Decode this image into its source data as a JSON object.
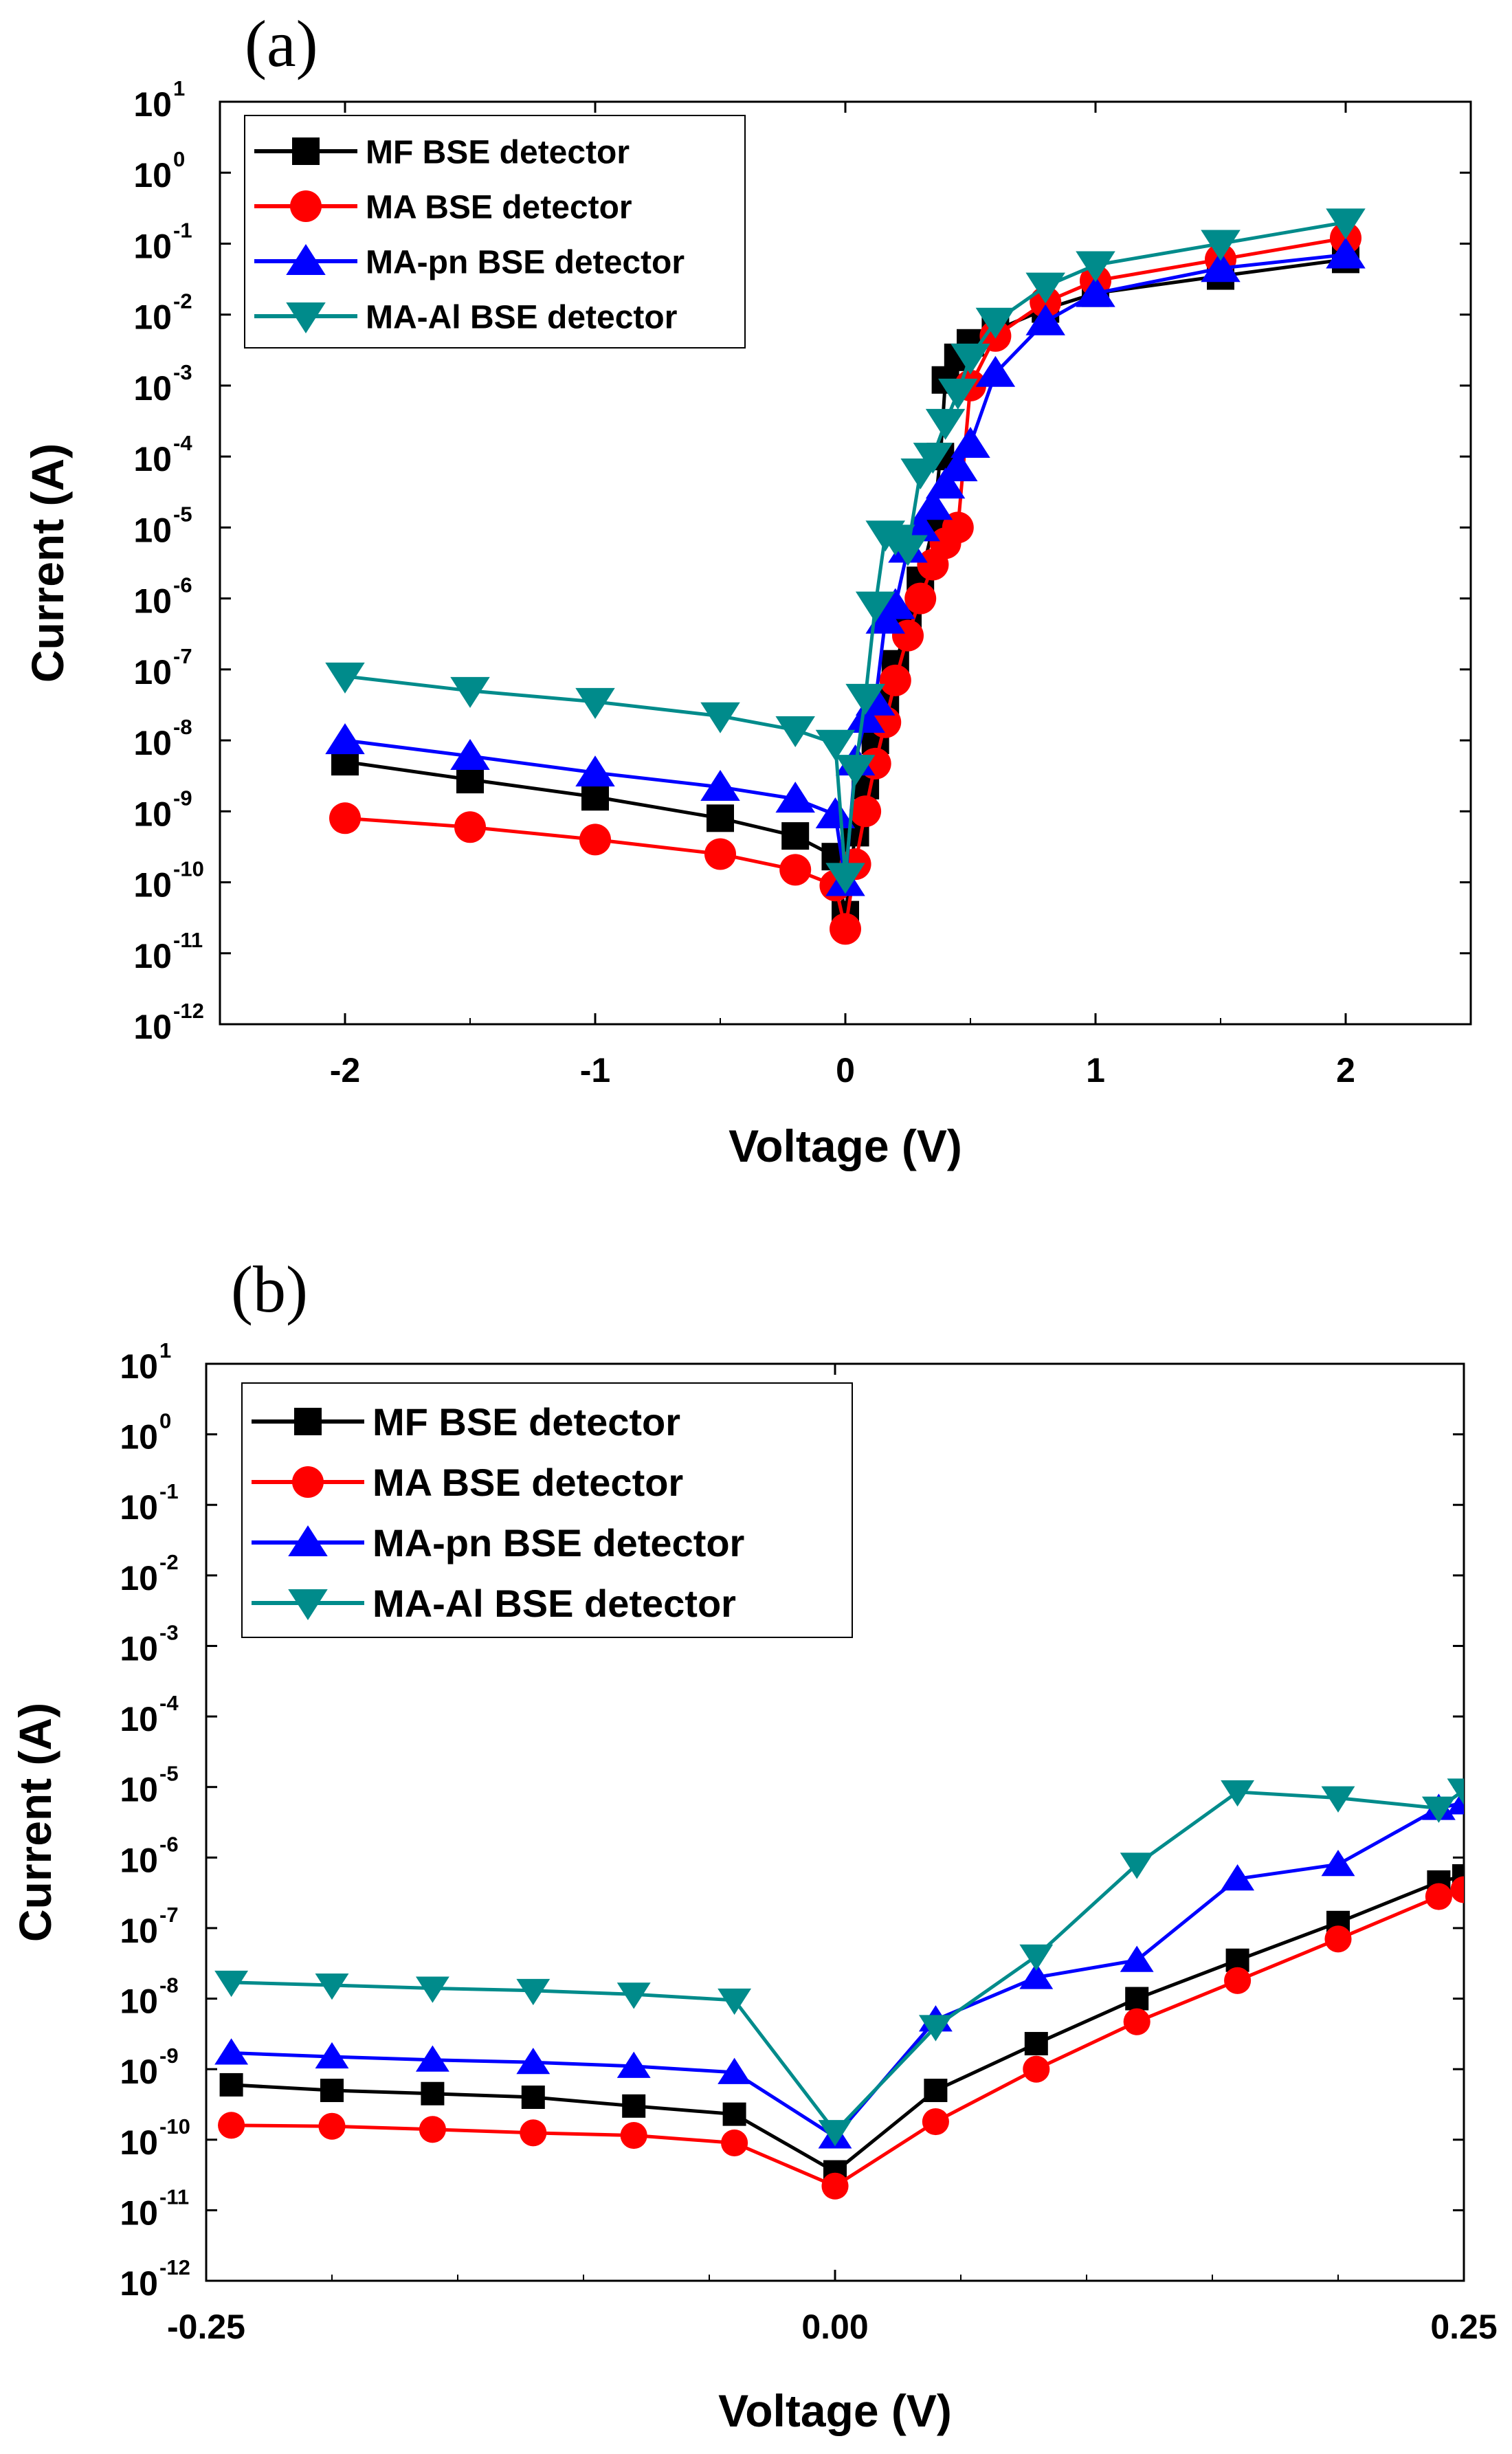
{
  "chart_data": [
    {
      "type": "scatter",
      "panel_label": "(a)",
      "xlabel": "Voltage (V)",
      "ylabel": "Current (A)",
      "xlim": [
        -2.5,
        2.5
      ],
      "ylim_exp": [
        -12,
        1
      ],
      "yscale": "log",
      "x_ticks": [
        -2,
        -1,
        0,
        1,
        2
      ],
      "x_tick_labels": [
        "-2",
        "-1",
        "0",
        "1",
        "2"
      ],
      "y_tick_exponents": [
        1,
        0,
        -1,
        -2,
        -3,
        -4,
        -5,
        -6,
        -7,
        -8,
        -9,
        -10,
        -11,
        -12
      ],
      "y_tick_base": "10",
      "legend_position": "top-left",
      "series": [
        {
          "name": "MF BSE detector",
          "color": "#000000",
          "marker": "square",
          "x": [
            -2.0,
            -1.5,
            -1.0,
            -0.5,
            -0.2,
            -0.04,
            0.0,
            0.04,
            0.08,
            0.12,
            0.16,
            0.2,
            0.25,
            0.3,
            0.35,
            0.38,
            0.4,
            0.45,
            0.5,
            0.6,
            0.8,
            1.0,
            1.5,
            2.0
          ],
          "y": [
            5e-09,
            2.8e-09,
            1.6e-09,
            8e-10,
            4.5e-10,
            2.3e-10,
            3.5e-11,
            5e-10,
            2.3e-09,
            1e-08,
            3.5e-08,
            1.2e-07,
            4.5e-07,
            1.8e-06,
            1e-05,
            0.0001,
            0.0012,
            0.0025,
            0.004,
            0.006,
            0.012,
            0.02,
            0.035,
            0.06
          ]
        },
        {
          "name": "MA BSE detector",
          "color": "#ff0000",
          "marker": "circle",
          "x": [
            -2.0,
            -1.5,
            -1.0,
            -0.5,
            -0.2,
            -0.04,
            0.0,
            0.04,
            0.08,
            0.12,
            0.16,
            0.2,
            0.25,
            0.3,
            0.35,
            0.4,
            0.45,
            0.5,
            0.6,
            0.8,
            1.0,
            1.5,
            2.0
          ],
          "y": [
            8e-10,
            6e-10,
            4e-10,
            2.5e-10,
            1.5e-10,
            9e-11,
            2.2e-11,
            1.8e-10,
            1e-09,
            4.7e-09,
            1.8e-08,
            7e-08,
            3e-07,
            1e-06,
            3e-06,
            6e-06,
            1e-05,
            0.001,
            0.005,
            0.015,
            0.03,
            0.06,
            0.12
          ]
        },
        {
          "name": "MA-pn BSE detector",
          "color": "#0000ff",
          "marker": "triangle-up",
          "x": [
            -2.0,
            -1.5,
            -1.0,
            -0.5,
            -0.2,
            -0.04,
            0.0,
            0.04,
            0.08,
            0.12,
            0.16,
            0.2,
            0.25,
            0.3,
            0.35,
            0.4,
            0.45,
            0.5,
            0.6,
            0.8,
            1.0,
            1.5,
            2.0
          ],
          "y": [
            1e-08,
            6e-09,
            3.5e-09,
            2.2e-09,
            1.5e-09,
            9e-10,
            1e-10,
            5e-09,
            2e-08,
            3.5e-08,
            5e-07,
            8e-07,
            5e-06,
            1e-05,
            2e-05,
            4e-05,
            7e-05,
            0.00015,
            0.0015,
            0.008,
            0.02,
            0.045,
            0.07
          ]
        },
        {
          "name": "MA-Al BSE detector",
          "color": "#008b8b",
          "marker": "triangle-down",
          "x": [
            -2.0,
            -1.5,
            -1.0,
            -0.5,
            -0.2,
            -0.04,
            0.0,
            0.04,
            0.08,
            0.12,
            0.16,
            0.2,
            0.25,
            0.3,
            0.35,
            0.4,
            0.45,
            0.5,
            0.6,
            0.8,
            1.0,
            1.5,
            2.0
          ],
          "y": [
            8e-08,
            5e-08,
            3.5e-08,
            2.2e-08,
            1.4e-08,
            9e-09,
            1.2e-10,
            4e-09,
            4e-08,
            8e-07,
            8e-06,
            7e-06,
            5e-06,
            6e-05,
            0.0001,
            0.0003,
            0.0008,
            0.0025,
            0.008,
            0.025,
            0.05,
            0.1,
            0.2
          ]
        }
      ]
    },
    {
      "type": "line",
      "panel_label": "(b)",
      "xlabel": "Voltage (V)",
      "ylabel": "Current (A)",
      "xlim": [
        -0.25,
        0.25
      ],
      "ylim_exp": [
        -12,
        1
      ],
      "yscale": "log",
      "x_ticks": [
        -0.25,
        0.0,
        0.25
      ],
      "x_tick_labels": [
        "-0.25",
        "0.00",
        "0.25"
      ],
      "y_tick_exponents": [
        1,
        0,
        -1,
        -2,
        -3,
        -4,
        -5,
        -6,
        -7,
        -8,
        -9,
        -10,
        -11,
        -12
      ],
      "y_tick_base": "10",
      "legend_position": "top-left",
      "series": [
        {
          "name": "MF BSE detector",
          "color": "#000000",
          "marker": "square",
          "x": [
            -0.24,
            -0.2,
            -0.16,
            -0.12,
            -0.08,
            -0.04,
            0.0,
            0.04,
            0.08,
            0.12,
            0.16,
            0.2,
            0.24,
            0.25
          ],
          "y": [
            6e-10,
            5e-10,
            4.5e-10,
            4e-10,
            3e-10,
            2.3e-10,
            3.5e-11,
            5e-10,
            2.3e-09,
            1e-08,
            3.5e-08,
            1.2e-07,
            4.5e-07,
            5.5e-07
          ]
        },
        {
          "name": "MA BSE detector",
          "color": "#ff0000",
          "marker": "circle",
          "x": [
            -0.24,
            -0.2,
            -0.16,
            -0.12,
            -0.08,
            -0.04,
            0.0,
            0.04,
            0.08,
            0.12,
            0.16,
            0.2,
            0.24,
            0.25
          ],
          "y": [
            1.6e-10,
            1.55e-10,
            1.4e-10,
            1.25e-10,
            1.15e-10,
            9e-11,
            2.2e-11,
            1.8e-10,
            1e-09,
            4.7e-09,
            1.8e-08,
            7e-08,
            2.8e-07,
            3.5e-07
          ]
        },
        {
          "name": "MA-pn BSE detector",
          "color": "#0000ff",
          "marker": "triangle-up",
          "x": [
            -0.24,
            -0.2,
            -0.16,
            -0.12,
            -0.08,
            -0.04,
            0.0,
            0.04,
            0.08,
            0.12,
            0.16,
            0.2,
            0.24,
            0.25
          ],
          "y": [
            1.7e-09,
            1.5e-09,
            1.35e-09,
            1.25e-09,
            1.1e-09,
            9e-10,
            1.1e-10,
            5e-09,
            2e-08,
            3.5e-08,
            5e-07,
            8e-07,
            5e-06,
            6e-06
          ]
        },
        {
          "name": "MA-Al BSE detector",
          "color": "#008b8b",
          "marker": "triangle-down",
          "x": [
            -0.24,
            -0.2,
            -0.16,
            -0.12,
            -0.08,
            -0.04,
            0.0,
            0.04,
            0.08,
            0.12,
            0.16,
            0.2,
            0.24,
            0.25
          ],
          "y": [
            1.7e-08,
            1.55e-08,
            1.4e-08,
            1.3e-08,
            1.15e-08,
            9.5e-09,
            1.3e-10,
            4e-09,
            4e-08,
            8e-07,
            8.5e-06,
            7e-06,
            5e-06,
            9e-06
          ]
        }
      ]
    }
  ]
}
